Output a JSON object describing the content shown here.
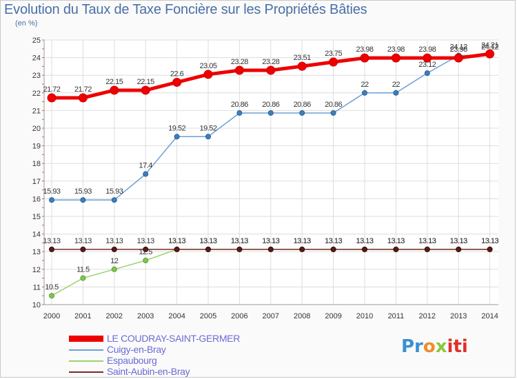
{
  "header": {
    "title": "Evolution du Taux de Taxe Foncière sur les Propriétés Bâties",
    "unit": "(en %)"
  },
  "logo": {
    "parts": [
      "Pr",
      "o",
      "x",
      "iti"
    ]
  },
  "colors": {
    "series1": "#ee0000",
    "series2": "#6a9fd4",
    "series3": "#9ad36a",
    "series4": "#7a2a2a",
    "grid": "#dddddd",
    "axis_text": "#333333"
  },
  "chart_data": {
    "type": "line",
    "x": [
      "2000",
      "2001",
      "2002",
      "2003",
      "2004",
      "2005",
      "2006",
      "2007",
      "2008",
      "2009",
      "2010",
      "2011",
      "2012",
      "2013",
      "2014"
    ],
    "ylim": [
      10,
      25
    ],
    "yticks": [
      "10",
      "11",
      "12",
      "13",
      "14",
      "15",
      "16",
      "17",
      "18",
      "19",
      "20",
      "21",
      "22",
      "23",
      "24",
      "25"
    ],
    "grid": true,
    "legend": "bottom-left",
    "series": [
      {
        "name": "LE COUDRAY-SAINT-GERMER",
        "values": [
          21.72,
          21.72,
          22.15,
          22.15,
          22.6,
          23.05,
          23.28,
          23.28,
          23.51,
          23.75,
          23.98,
          23.98,
          23.98,
          23.98,
          24.21
        ],
        "labels": [
          "21.72",
          "21.72",
          "22.15",
          "22.15",
          "22.6",
          "23.05",
          "23.28",
          "23.28",
          "23.51",
          "23.75",
          "23.98",
          "23.98",
          "23.98",
          "23.98",
          "24.21"
        ]
      },
      {
        "name": "Cuigy-en-Bray",
        "values": [
          15.93,
          15.93,
          15.93,
          17.4,
          19.52,
          19.52,
          20.86,
          20.86,
          20.86,
          20.86,
          22,
          22,
          23.12,
          24.12,
          24.12
        ],
        "labels": [
          "15.93",
          "15.93",
          "15.93",
          "17.4",
          "19.52",
          "19.52",
          "20.86",
          "20.86",
          "20.86",
          "20.86",
          "22",
          "22",
          "23.12",
          "24.12",
          "24.12"
        ]
      },
      {
        "name": "Espaubourg",
        "values": [
          10.5,
          11.5,
          12,
          12.5,
          13.13,
          13.13,
          13.13,
          13.13,
          13.13,
          13.13,
          13.13,
          13.13,
          13.13,
          13.13,
          13.13
        ],
        "labels": [
          "10.5",
          "11.5",
          "12",
          "12.5",
          "13.13",
          "13.13",
          "13.13",
          "13.13",
          "13.13",
          "13.13",
          "13.13",
          "13.13",
          "13.13",
          "13.13",
          "13.13"
        ]
      },
      {
        "name": "Saint-Aubin-en-Bray",
        "values": [
          13.13,
          13.13,
          13.13,
          13.13,
          13.13,
          13.13,
          13.13,
          13.13,
          13.13,
          13.13,
          13.13,
          13.13,
          13.13,
          13.13,
          13.13
        ],
        "labels": [
          "13.13",
          "13.13",
          "13.13",
          "13.13",
          "13.13",
          "13.13",
          "13.13",
          "13.13",
          "13.13",
          "13.13",
          "13.13",
          "13.13",
          "13.13",
          "13.13",
          "13.13"
        ]
      }
    ]
  }
}
